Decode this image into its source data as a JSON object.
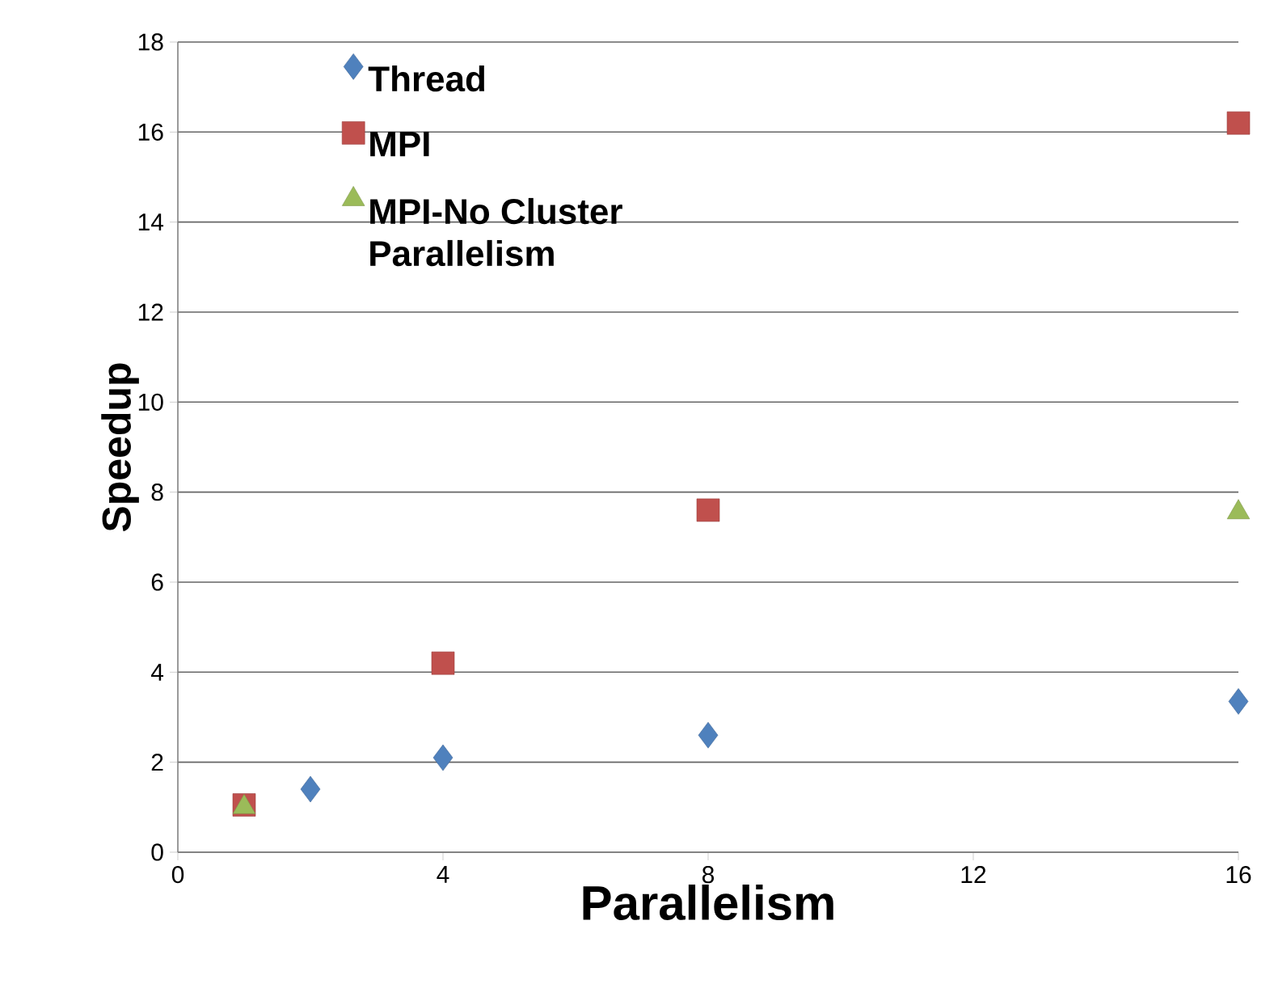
{
  "chart_data": {
    "type": "scatter",
    "xlabel": "Parallelism",
    "ylabel": "Speedup",
    "xlim": [
      0,
      16
    ],
    "xticks": [
      0,
      4,
      8,
      12,
      16
    ],
    "ylim": [
      0,
      18
    ],
    "yticks": [
      0,
      2,
      4,
      6,
      8,
      10,
      12,
      14,
      16,
      18
    ],
    "grid": "y",
    "legend": "top left",
    "series": [
      {
        "name": "Thread",
        "color": "#4f81bd",
        "marker": "diamond",
        "x": [
          2,
          4,
          8,
          16
        ],
        "values": [
          1.4,
          2.1,
          2.6,
          3.35
        ]
      },
      {
        "name": "MPI",
        "color": "#c0504d",
        "marker": "square",
        "x": [
          1,
          4,
          8,
          16
        ],
        "values": [
          1.05,
          4.2,
          7.6,
          16.2
        ]
      },
      {
        "name": "MPI-No Cluster Parallelism",
        "color": "#9bbb59",
        "marker": "triangle",
        "x": [
          1,
          16
        ],
        "values": [
          1.0,
          7.55
        ]
      }
    ]
  }
}
